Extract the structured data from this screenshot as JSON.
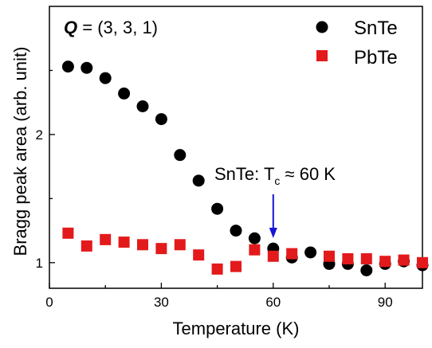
{
  "chart_data": {
    "type": "scatter",
    "title": "",
    "xlabel": "Temperature (K)",
    "ylabel": "Bragg peak area (arb. unit)",
    "xlim": [
      0,
      100
    ],
    "ylim": [
      0.8,
      3.0
    ],
    "xticks": [
      0,
      30,
      60,
      90
    ],
    "yticks": [
      1,
      2
    ],
    "grid": false,
    "legend_position": "top-right",
    "annotations": {
      "q_label_bold": "Q",
      "q_label_rest": " = (3, 3, 1)",
      "tc_label_main": "SnTe: T",
      "tc_label_sub": "c",
      "tc_label_rest": " ≈ 60 K",
      "tc_arrow_x": 60
    },
    "series": [
      {
        "name": "SnTe",
        "marker": "circle",
        "color": "#000000",
        "x": [
          5,
          10,
          15,
          20,
          25,
          30,
          35,
          40,
          45,
          50,
          55,
          60,
          65,
          70,
          75,
          80,
          85,
          90,
          95,
          100
        ],
        "y": [
          2.53,
          2.52,
          2.44,
          2.32,
          2.22,
          2.12,
          1.84,
          1.64,
          1.42,
          1.25,
          1.19,
          1.11,
          1.04,
          1.08,
          0.99,
          0.99,
          0.94,
          0.99,
          1.01,
          0.98
        ]
      },
      {
        "name": "PbTe",
        "marker": "square",
        "color": "#e31a1c",
        "x": [
          5,
          10,
          15,
          20,
          25,
          30,
          35,
          40,
          45,
          50,
          55,
          60,
          65,
          75,
          80,
          85,
          90,
          95,
          100
        ],
        "y": [
          1.23,
          1.13,
          1.18,
          1.16,
          1.14,
          1.11,
          1.14,
          1.06,
          0.95,
          0.97,
          1.1,
          1.05,
          1.07,
          1.05,
          1.03,
          1.03,
          1.01,
          1.02,
          1.0
        ]
      }
    ]
  }
}
